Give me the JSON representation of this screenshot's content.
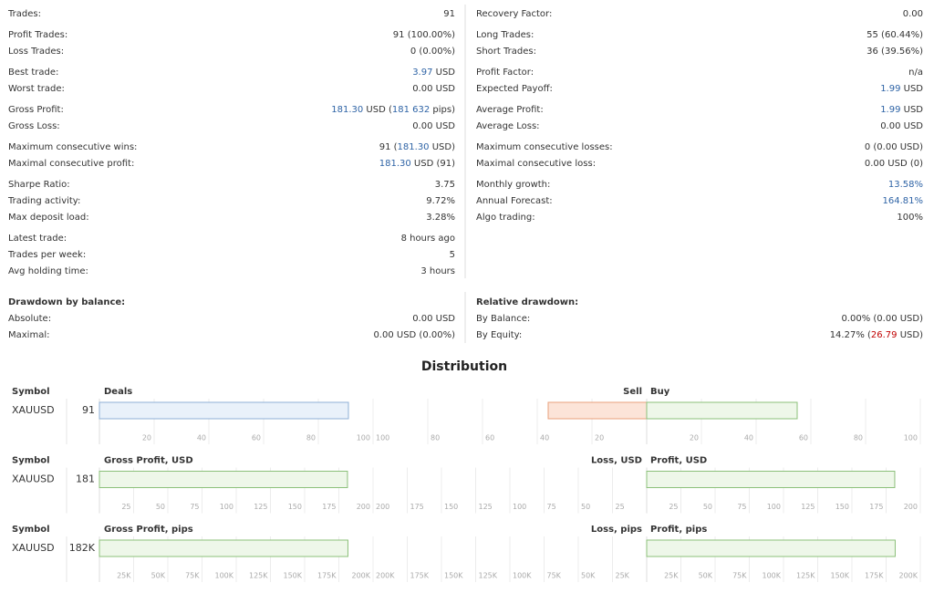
{
  "stats": {
    "groups": [
      [
        {
          "left": {
            "label": "Trades:",
            "value": "91"
          },
          "right": {
            "label": "Recovery Factor:",
            "value": "0.00"
          }
        }
      ],
      [
        {
          "left": {
            "label": "Profit Trades:",
            "value": "91 (100.00%)"
          },
          "right": {
            "label": "Long Trades:",
            "value": "55 (60.44%)"
          }
        },
        {
          "left": {
            "label": "Loss Trades:",
            "value": "0 (0.00%)"
          },
          "right": {
            "label": "Short Trades:",
            "value": "36 (39.56%)"
          }
        }
      ],
      [
        {
          "left": {
            "label": "Best trade:",
            "value": [
              {
                "text": "3.97",
                "color": "#2f64a6"
              },
              {
                "text": " USD"
              }
            ]
          },
          "right": {
            "label": "Profit Factor:",
            "value": "n/a"
          }
        },
        {
          "left": {
            "label": "Worst trade:",
            "value": "0.00 USD"
          },
          "right": {
            "label": "Expected Payoff:",
            "value": [
              {
                "text": "1.99",
                "color": "#2f64a6"
              },
              {
                "text": " USD"
              }
            ]
          }
        }
      ],
      [
        {
          "left": {
            "label": "Gross Profit:",
            "value": [
              {
                "text": "181.30",
                "color": "#2f64a6"
              },
              {
                "text": " USD ("
              },
              {
                "text": "181 632",
                "color": "#2f64a6"
              },
              {
                "text": " pips)"
              }
            ]
          },
          "right": {
            "label": "Average Profit:",
            "value": [
              {
                "text": "1.99",
                "color": "#2f64a6"
              },
              {
                "text": " USD"
              }
            ]
          }
        },
        {
          "left": {
            "label": "Gross Loss:",
            "value": "0.00 USD"
          },
          "right": {
            "label": "Average Loss:",
            "value": "0.00 USD"
          }
        }
      ],
      [
        {
          "left": {
            "label": "Maximum consecutive wins:",
            "value": [
              {
                "text": "91 ("
              },
              {
                "text": "181.30",
                "color": "#2f64a6"
              },
              {
                "text": " USD)"
              }
            ]
          },
          "right": {
            "label": "Maximum consecutive losses:",
            "value": "0 (0.00 USD)"
          }
        },
        {
          "left": {
            "label": "Maximal consecutive profit:",
            "value": [
              {
                "text": "181.30",
                "color": "#2f64a6"
              },
              {
                "text": " USD (91)"
              }
            ]
          },
          "right": {
            "label": "Maximal consecutive loss:",
            "value": "0.00 USD (0)"
          }
        }
      ],
      [
        {
          "left": {
            "label": "Sharpe Ratio:",
            "value": "3.75"
          },
          "right": {
            "label": "Monthly growth:",
            "value": [
              {
                "text": "13.58%",
                "color": "#2f64a6"
              }
            ]
          }
        },
        {
          "left": {
            "label": "Trading activity:",
            "value": "9.72%"
          },
          "right": {
            "label": "Annual Forecast:",
            "value": [
              {
                "text": "164.81%",
                "color": "#2f64a6"
              }
            ]
          }
        },
        {
          "left": {
            "label": "Max deposit load:",
            "value": "3.28%"
          },
          "right": {
            "label": "Algo trading:",
            "value": "100%"
          }
        }
      ],
      [
        {
          "left": {
            "label": "Latest trade:",
            "value": "8 hours ago"
          }
        },
        {
          "left": {
            "label": "Trades per week:",
            "value": "5"
          }
        },
        {
          "left": {
            "label": "Avg holding time:",
            "value": "3 hours"
          }
        }
      ]
    ]
  },
  "drawdown": {
    "left": {
      "title": "Drawdown by balance:",
      "rows": [
        {
          "label": "Absolute:",
          "value": "0.00 USD"
        },
        {
          "label": "Maximal:",
          "value": "0.00 USD (0.00%)"
        }
      ]
    },
    "right": {
      "title": "Relative drawdown:",
      "rows": [
        {
          "label": "By Balance:",
          "value": "0.00% (0.00 USD)"
        },
        {
          "label": "By Equity:",
          "value": [
            {
              "text": "14.27% ("
            },
            {
              "text": "26.79",
              "color": "#c00000"
            },
            {
              "text": " USD)"
            }
          ]
        }
      ]
    }
  },
  "distribution": {
    "title": "Distribution",
    "panels": [
      {
        "symbol_header": "Symbol",
        "title": "Deals",
        "symbol": "XAUUSD",
        "value": 91,
        "value_label": "91",
        "color": "#e9f1fa",
        "stroke": "#8fb0d6",
        "xlim": [
          0,
          100
        ],
        "xticks": [
          20,
          40,
          60,
          80,
          100
        ],
        "left_title": "Sell",
        "right_title": "Buy",
        "left_value": 36,
        "right_value": 55,
        "left_color": "#fce4d8",
        "left_stroke": "#e9a07c",
        "right_color": "#eef7e9",
        "right_stroke": "#8cc07a"
      },
      {
        "symbol_header": "Symbol",
        "title": "Gross Profit, USD",
        "symbol": "XAUUSD",
        "value": 181.3,
        "value_label": "181",
        "color": "#eef7e9",
        "stroke": "#8cc07a",
        "xlim": [
          0,
          200
        ],
        "xticks": [
          25,
          50,
          75,
          100,
          125,
          150,
          175,
          200
        ],
        "left_title": "Loss, USD",
        "right_title": "Profit, USD",
        "left_value": 0,
        "right_value": 181.3,
        "left_color": "#fce4d8",
        "left_stroke": "#e9a07c",
        "right_color": "#eef7e9",
        "right_stroke": "#8cc07a"
      },
      {
        "symbol_header": "Symbol",
        "title": "Gross Profit, pips",
        "symbol": "XAUUSD",
        "value": 181632,
        "value_label": "182K",
        "color": "#eef7e9",
        "stroke": "#8cc07a",
        "xlim": [
          0,
          200000
        ],
        "xticks": [
          {
            "value": 25000,
            "label": "25K"
          },
          {
            "value": 50000,
            "label": "50K"
          },
          {
            "value": 75000,
            "label": "75K"
          },
          {
            "value": 100000,
            "label": "100K"
          },
          {
            "value": 125000,
            "label": "125K"
          },
          {
            "value": 150000,
            "label": "150K"
          },
          {
            "value": 175000,
            "label": "175K"
          },
          {
            "value": 200000,
            "label": "200K"
          }
        ],
        "left_title": "Loss, pips",
        "right_title": "Profit, pips",
        "left_value": 0,
        "right_value": 181632,
        "left_color": "#fce4d8",
        "left_stroke": "#e9a07c",
        "right_color": "#eef7e9",
        "right_stroke": "#8cc07a"
      }
    ]
  }
}
